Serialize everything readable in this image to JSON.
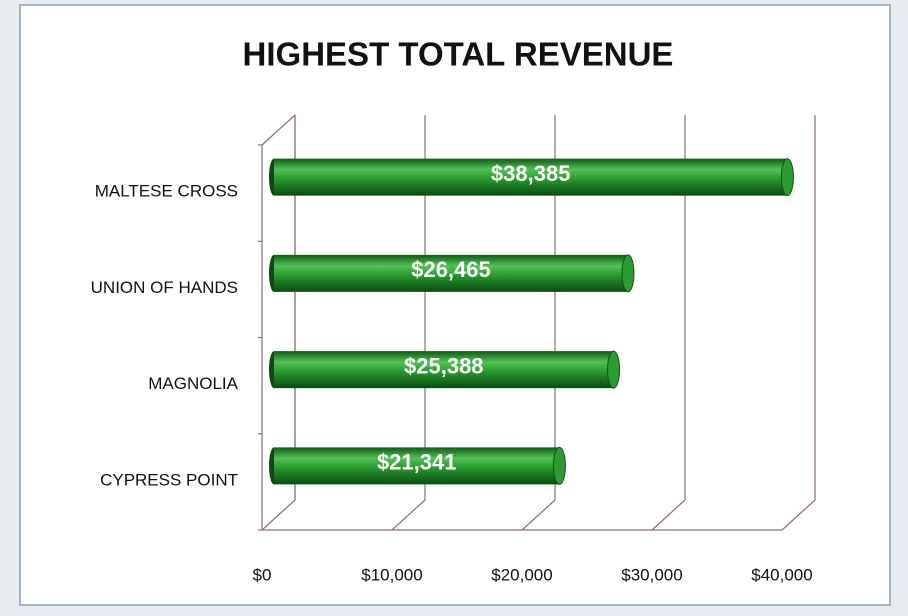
{
  "chart_data": {
    "type": "bar",
    "orientation": "horizontal",
    "title": "HIGHEST TOTAL REVENUE",
    "categories": [
      "MALTESE CROSS",
      "UNION OF HANDS",
      "MAGNOLIA",
      "CYPRESS POINT"
    ],
    "values": [
      38385,
      26465,
      25388,
      21341
    ],
    "value_labels": [
      "$38,385",
      "$26,465",
      "$25,388",
      "$21,341"
    ],
    "color": "#2a9a2e",
    "xlim": [
      0,
      40000
    ],
    "xticks": [
      {
        "value": 0,
        "label": "$0"
      },
      {
        "value": 10000,
        "label": "$10,000"
      },
      {
        "value": 20000,
        "label": "$20,000"
      },
      {
        "value": 30000,
        "label": "$30,000"
      },
      {
        "value": 40000,
        "label": "$40,000"
      }
    ],
    "grid": true
  }
}
